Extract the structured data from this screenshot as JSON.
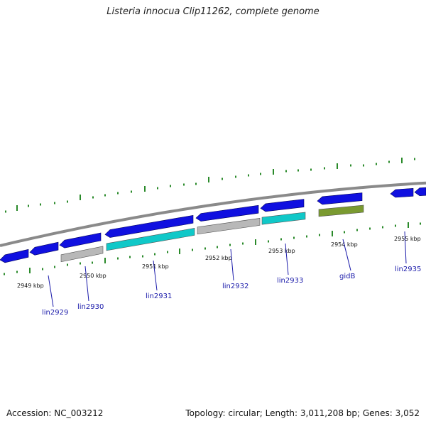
{
  "title": "Listeria innocua Clip11262, complete genome",
  "footer": {
    "accession": "Accession: NC_003212",
    "summary": "Topology: circular; Length: 3,011,208 bp; Genes: 3,052"
  },
  "colors": {
    "backbone": "#8a8a8a",
    "cds_blue": "#1010e0",
    "cds_gray": "#b8b8b8",
    "cds_cyan": "#10c8c8",
    "cds_olive": "#7a9a30",
    "tick_green": "#2a8a2a",
    "label_blue": "#1a1aaa"
  },
  "scale_labels": [
    "2949 kbp",
    "2950 kbp",
    "2951 kbp",
    "2952 kbp",
    "2953 kbp",
    "2954 kbp",
    "2955 kbp"
  ],
  "gene_labels": [
    "lin2929",
    "lin2930",
    "lin2931",
    "lin2932",
    "lin2933",
    "gidB",
    "lin2935"
  ]
}
